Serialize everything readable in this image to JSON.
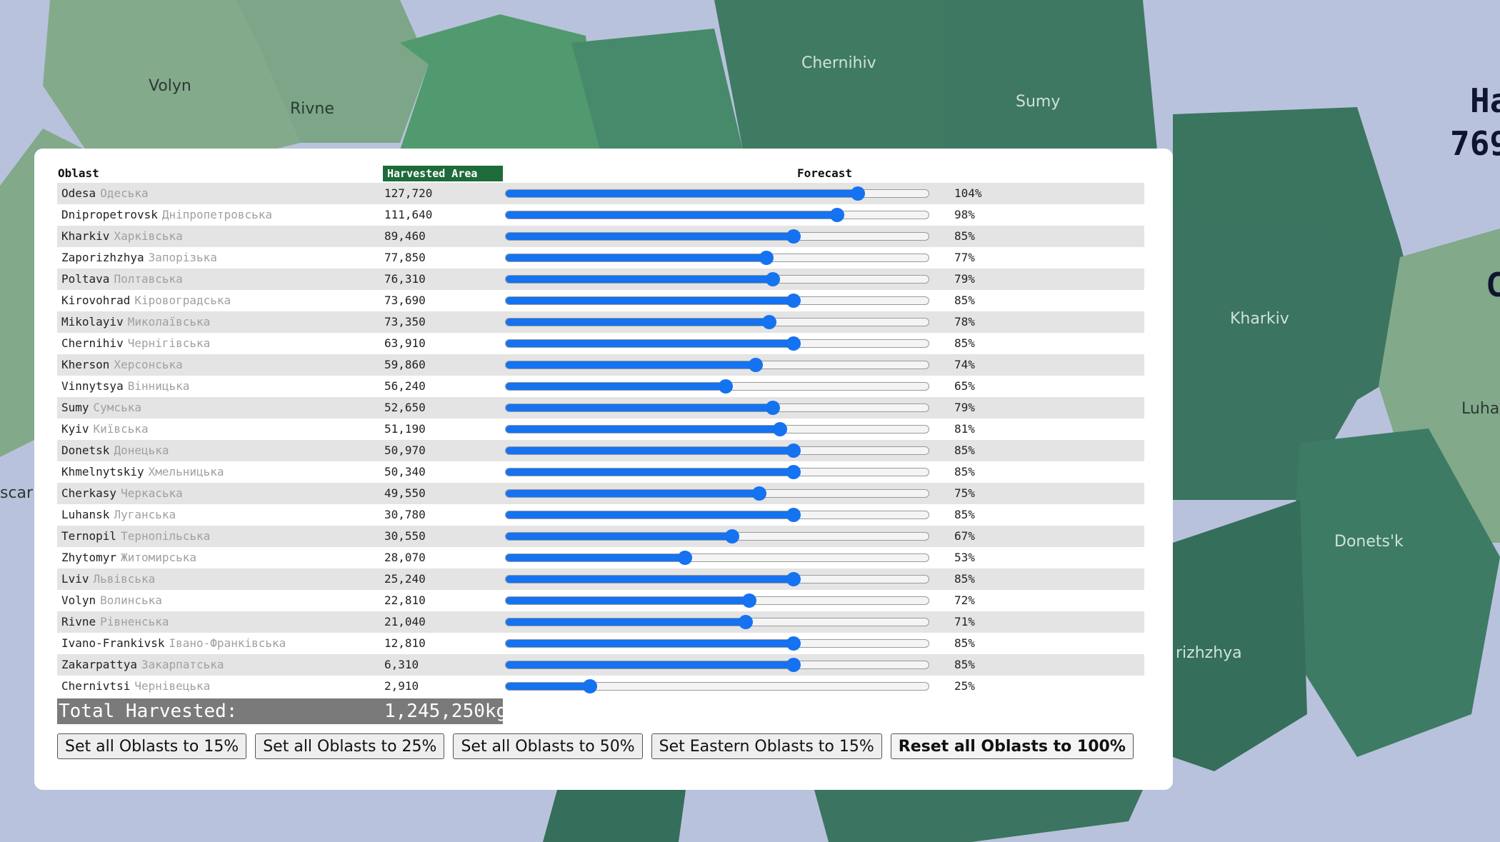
{
  "map": {
    "labels": {
      "volyn": "Volyn",
      "rivne": "Rivne",
      "chernihiv": "Chernihiv",
      "sumy": "Sumy",
      "kharkiv": "Kharkiv",
      "luhansk": "Luha",
      "donetsk": "Donets'k",
      "zaporizhzhya": "rizhzhya",
      "zakarpattya": "scarp",
      "title": "Ha",
      "number": "769",
      "c_letter": "C"
    },
    "colors": {
      "sea": "#b9c2dc",
      "dark": "#3d7a63",
      "mid": "#4f9a70",
      "light": "#7fa98a"
    }
  },
  "table": {
    "headers": {
      "oblast": "Oblast",
      "area": "Harvested Area",
      "forecast": "Forecast"
    },
    "rows": [
      {
        "en": "Odesa",
        "uk": "Одеська",
        "area": "127,720",
        "pct": "104%",
        "value": 104
      },
      {
        "en": "Dnipropetrovsk",
        "uk": "Дніпропетровська",
        "area": "111,640",
        "pct": "98%",
        "value": 98
      },
      {
        "en": "Kharkiv",
        "uk": "Харківська",
        "area": "89,460",
        "pct": "85%",
        "value": 85
      },
      {
        "en": "Zaporizhzhya",
        "uk": "Запорізька",
        "area": "77,850",
        "pct": "77%",
        "value": 77
      },
      {
        "en": "Poltava",
        "uk": "Полтавська",
        "area": "76,310",
        "pct": "79%",
        "value": 79
      },
      {
        "en": "Kirovohrad",
        "uk": "Кіровоградська",
        "area": "73,690",
        "pct": "85%",
        "value": 85
      },
      {
        "en": "Mikolayiv",
        "uk": "Миколаївська",
        "area": "73,350",
        "pct": "78%",
        "value": 78
      },
      {
        "en": "Chernihiv",
        "uk": "Чернігівська",
        "area": "63,910",
        "pct": "85%",
        "value": 85
      },
      {
        "en": "Kherson",
        "uk": "Херсонська",
        "area": "59,860",
        "pct": "74%",
        "value": 74
      },
      {
        "en": "Vinnytsya",
        "uk": "Вінницька",
        "area": "56,240",
        "pct": "65%",
        "value": 65
      },
      {
        "en": "Sumy",
        "uk": "Сумська",
        "area": "52,650",
        "pct": "79%",
        "value": 79
      },
      {
        "en": "Kyiv",
        "uk": "Київська",
        "area": "51,190",
        "pct": "81%",
        "value": 81
      },
      {
        "en": "Donetsk",
        "uk": "Донецька",
        "area": "50,970",
        "pct": "85%",
        "value": 85
      },
      {
        "en": "Khmelnytskiy",
        "uk": "Хмельницька",
        "area": "50,340",
        "pct": "85%",
        "value": 85
      },
      {
        "en": "Cherkasy",
        "uk": "Черкаська",
        "area": "49,550",
        "pct": "75%",
        "value": 75
      },
      {
        "en": "Luhansk",
        "uk": "Луганська",
        "area": "30,780",
        "pct": "85%",
        "value": 85
      },
      {
        "en": "Ternopil",
        "uk": "Тернопільська",
        "area": "30,550",
        "pct": "67%",
        "value": 67
      },
      {
        "en": "Zhytomyr",
        "uk": "Житомирська",
        "area": "28,070",
        "pct": "53%",
        "value": 53
      },
      {
        "en": "Lviv",
        "uk": "Львівська",
        "area": "25,240",
        "pct": "85%",
        "value": 85
      },
      {
        "en": "Volyn",
        "uk": "Волинська",
        "area": "22,810",
        "pct": "72%",
        "value": 72
      },
      {
        "en": "Rivne",
        "uk": "Рівненська",
        "area": "21,040",
        "pct": "71%",
        "value": 71
      },
      {
        "en": "Ivano-Frankivsk",
        "uk": "Івано-Франківська",
        "area": "12,810",
        "pct": "85%",
        "value": 85
      },
      {
        "en": "Zakarpattya",
        "uk": "Закарпатська",
        "area": "6,310",
        "pct": "85%",
        "value": 85
      },
      {
        "en": "Chernivtsi",
        "uk": "Чернівецька",
        "area": "2,910",
        "pct": "25%",
        "value": 25
      }
    ],
    "slider": {
      "min": 0,
      "max": 125,
      "accent": "#1572f0"
    },
    "total": {
      "label": "Total Harvested:",
      "value": "1,245,250kg"
    }
  },
  "buttons": {
    "set15": "Set all Oblasts to 15%",
    "set25": "Set all Oblasts to 25%",
    "set50": "Set all Oblasts to 50%",
    "eastern15": "Set Eastern Oblasts to 15%",
    "reset": "Reset all Oblasts to 100%"
  }
}
